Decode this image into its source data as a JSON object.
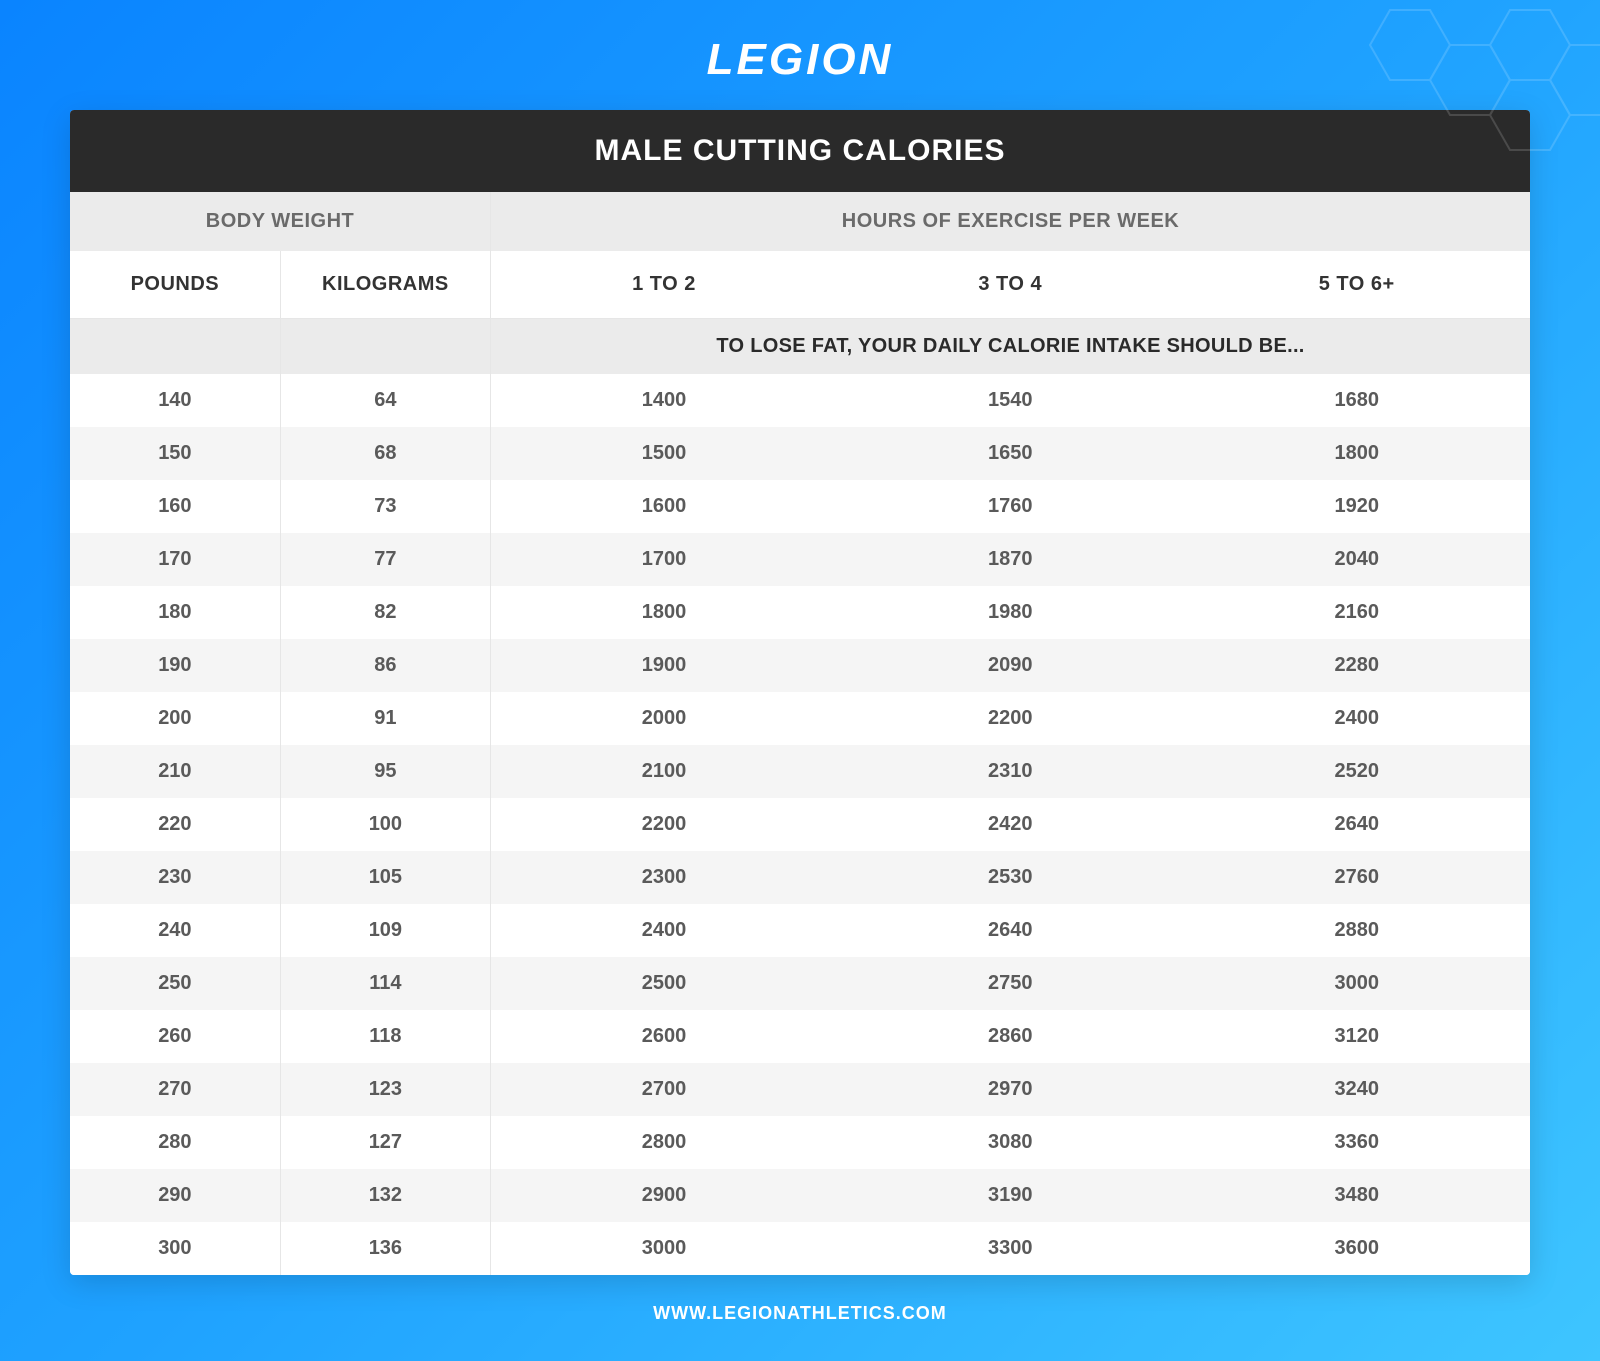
{
  "brand": {
    "name": "LEGION"
  },
  "title": "MALE CUTTING CALORIES",
  "footer": "WWW.LEGIONATHLETICS.COM",
  "colors": {
    "bg_gradient_start": "#0a84ff",
    "bg_gradient_mid": "#1fa2ff",
    "bg_gradient_end": "#3ec5ff",
    "title_bar_bg": "#2a2a2a",
    "title_bar_text": "#ffffff",
    "header_bg": "#ebebeb",
    "header_text": "#6a6a6a",
    "col_header_text": "#333333",
    "cell_text": "#5a5a5a",
    "row_even_bg": "#ffffff",
    "row_odd_bg": "#f5f5f5",
    "divider": "#e6e6e6",
    "white": "#ffffff"
  },
  "typography": {
    "logo_fontsize": 44,
    "title_fontsize": 30,
    "header_fontsize": 20,
    "cell_fontsize": 20,
    "footer_fontsize": 18,
    "weight_bold": 700
  },
  "table": {
    "type": "table",
    "group_headers": [
      "BODY WEIGHT",
      "HOURS OF EXERCISE PER WEEK"
    ],
    "group_spans": [
      2,
      3
    ],
    "columns": [
      "POUNDS",
      "KILOGRAMS",
      "1 TO 2",
      "3 TO 4",
      "5 TO 6+"
    ],
    "col_widths_pct": [
      14.4,
      14.4,
      23.73,
      23.73,
      23.73
    ],
    "note": "TO LOSE FAT, YOUR DAILY CALORIE INTAKE SHOULD BE...",
    "note_colspan": 3,
    "rows": [
      [
        "140",
        "64",
        "1400",
        "1540",
        "1680"
      ],
      [
        "150",
        "68",
        "1500",
        "1650",
        "1800"
      ],
      [
        "160",
        "73",
        "1600",
        "1760",
        "1920"
      ],
      [
        "170",
        "77",
        "1700",
        "1870",
        "2040"
      ],
      [
        "180",
        "82",
        "1800",
        "1980",
        "2160"
      ],
      [
        "190",
        "86",
        "1900",
        "2090",
        "2280"
      ],
      [
        "200",
        "91",
        "2000",
        "2200",
        "2400"
      ],
      [
        "210",
        "95",
        "2100",
        "2310",
        "2520"
      ],
      [
        "220",
        "100",
        "2200",
        "2420",
        "2640"
      ],
      [
        "230",
        "105",
        "2300",
        "2530",
        "2760"
      ],
      [
        "240",
        "109",
        "2400",
        "2640",
        "2880"
      ],
      [
        "250",
        "114",
        "2500",
        "2750",
        "3000"
      ],
      [
        "260",
        "118",
        "2600",
        "2860",
        "3120"
      ],
      [
        "270",
        "123",
        "2700",
        "2970",
        "3240"
      ],
      [
        "280",
        "127",
        "2800",
        "3080",
        "3360"
      ],
      [
        "290",
        "132",
        "2900",
        "3190",
        "3480"
      ],
      [
        "300",
        "136",
        "3000",
        "3300",
        "3600"
      ]
    ]
  }
}
